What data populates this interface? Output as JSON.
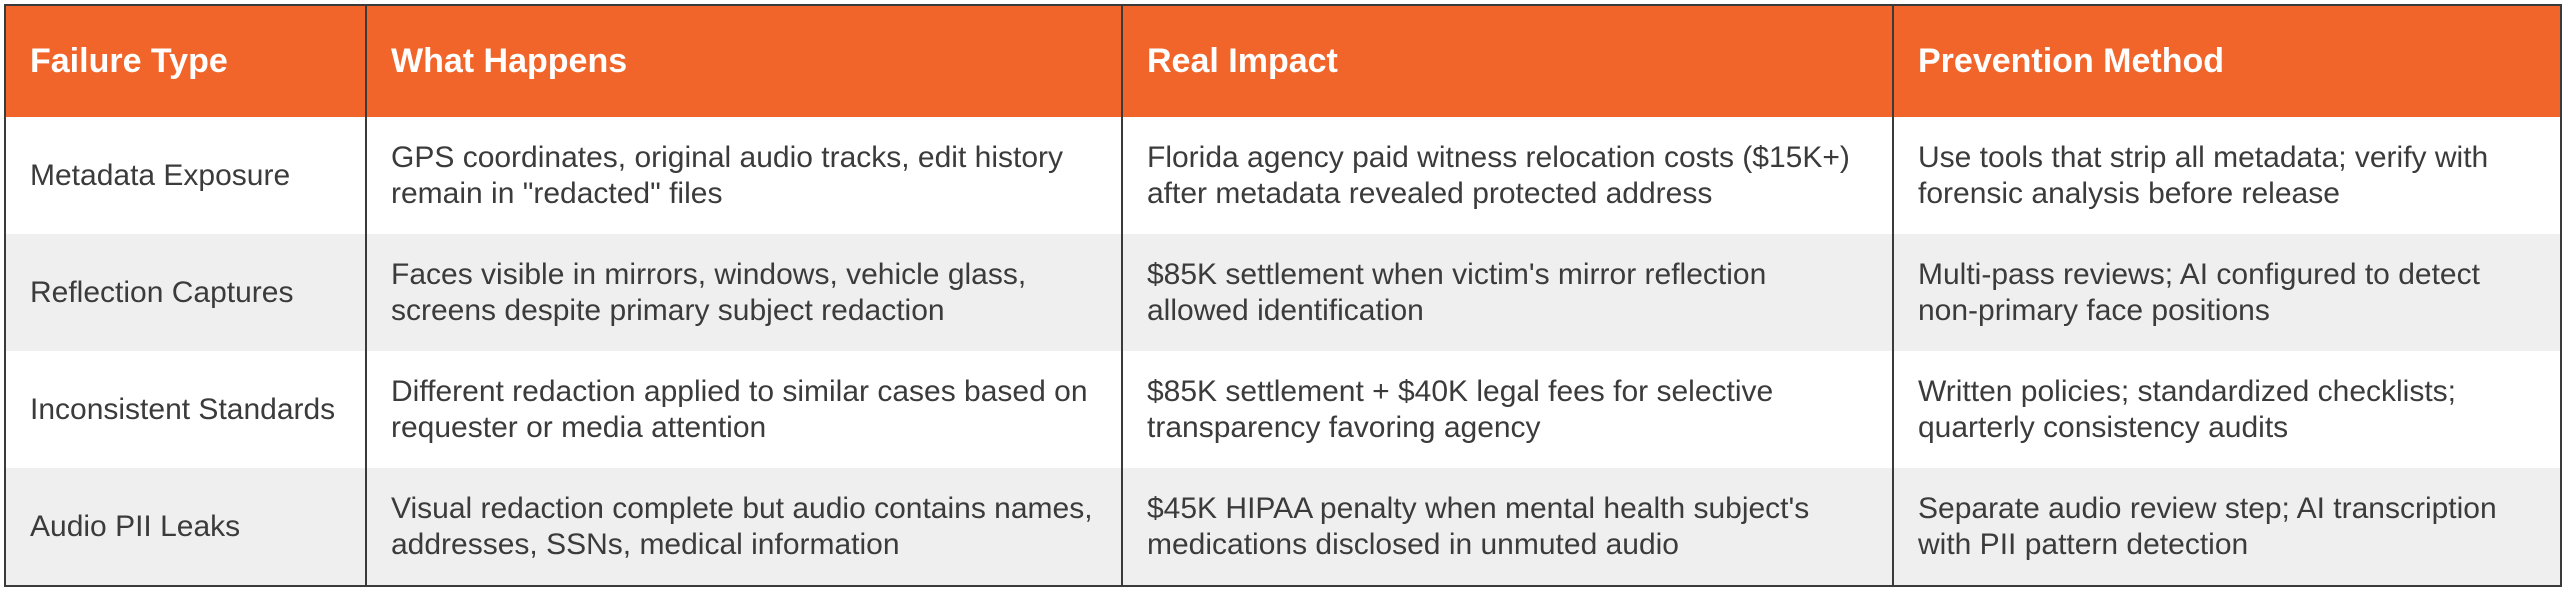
{
  "headers": [
    "Failure Type",
    "What Happens",
    "Real Impact",
    "Prevention Method"
  ],
  "rows": [
    {
      "failure_type": "Metadata Exposure",
      "what_happens": "GPS coordinates, original audio tracks, edit history remain in \"redacted\" files",
      "real_impact": "Florida agency paid witness relocation costs ($15K+) after metadata revealed protected address",
      "prevention": "Use tools that strip all metadata; verify with forensic analysis before release"
    },
    {
      "failure_type": "Reflection Captures",
      "what_happens": "Faces visible in mirrors, windows, vehicle glass, screens despite primary subject redaction",
      "real_impact": "$85K settlement when victim's mirror reflection allowed identification",
      "prevention": "Multi-pass reviews; AI configured to detect non-primary face positions"
    },
    {
      "failure_type": "Inconsistent Standards",
      "what_happens": "Different redaction applied to similar cases based on requester or media attention",
      "real_impact": "$85K settlement + $40K legal fees for selective transparency favoring agency",
      "prevention": "Written policies; standardized checklists; quarterly consistency audits"
    },
    {
      "failure_type": "Audio PII Leaks",
      "what_happens": "Visual redaction complete but audio contains names, addresses, SSNs, medical information",
      "real_impact": "$45K HIPAA penalty when mental health subject's medications disclosed in unmuted audio",
      "prevention": "Separate audio review step; AI transcription with PII pattern detection"
    }
  ],
  "colors": {
    "header_bg": "#f2652a",
    "header_text": "#ffffff",
    "row_alt_bg": "#efefef",
    "border": "#3a3a3a"
  }
}
